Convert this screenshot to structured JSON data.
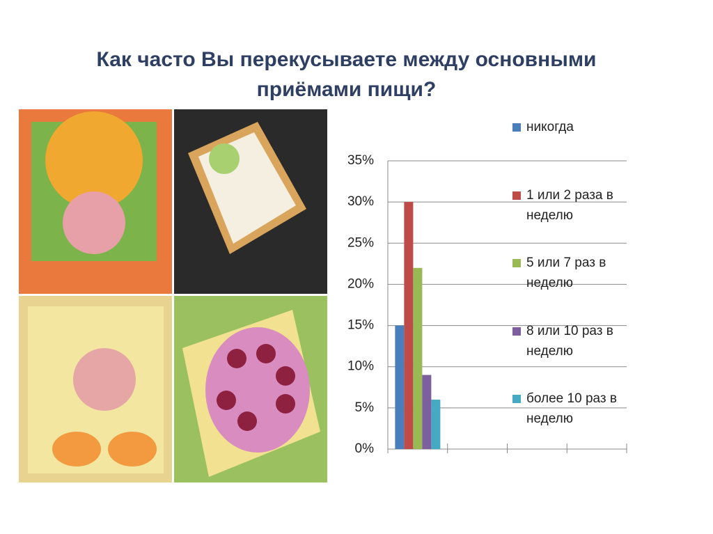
{
  "chart_data": {
    "type": "bar",
    "title": "Как часто Вы перекусываете между основными приёмами пищи?",
    "categories": [
      null
    ],
    "series": [
      {
        "name": "никогда",
        "color": "#4a7ebb",
        "values": [
          15
        ]
      },
      {
        "name": "1 или 2 раза в неделю",
        "color": "#be4b48",
        "values": [
          30
        ]
      },
      {
        "name": "5 или 7 раз в неделю",
        "color": "#98b954",
        "values": [
          22
        ]
      },
      {
        "name": "8 или 10 раз в неделю",
        "color": "#7d5fa0",
        "values": [
          9
        ]
      },
      {
        "name": "более 10 раз в неделю",
        "color": "#46aac5",
        "values": [
          6
        ]
      }
    ],
    "ylim": [
      0,
      35
    ],
    "yticks": [
      {
        "value": 0,
        "label": "0%"
      },
      {
        "value": 5,
        "label": "5%"
      },
      {
        "value": 10,
        "label": "10%"
      },
      {
        "value": 15,
        "label": "15%"
      },
      {
        "value": 20,
        "label": "20%"
      },
      {
        "value": 25,
        "label": "25%"
      },
      {
        "value": 30,
        "label": "30%"
      },
      {
        "value": 35,
        "label": "35%"
      }
    ],
    "grid": true,
    "legend": "right"
  }
}
